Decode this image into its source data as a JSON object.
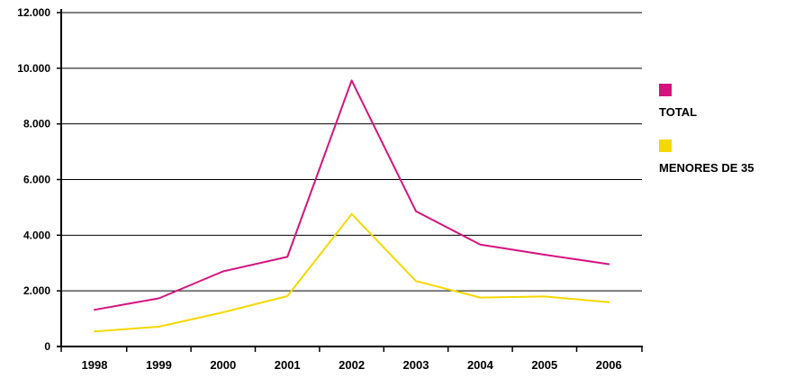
{
  "chart_data": {
    "type": "line",
    "categories": [
      "1998",
      "1999",
      "2000",
      "2001",
      "2002",
      "2003",
      "2004",
      "2005",
      "2006"
    ],
    "series": [
      {
        "name": "TOTAL",
        "color": "#d4137f",
        "values": [
          1320,
          1730,
          2700,
          3220,
          9560,
          4860,
          3660,
          3300,
          2960
        ]
      },
      {
        "name": "MENORES DE 35",
        "color": "#f5d800",
        "values": [
          540,
          710,
          1230,
          1810,
          4760,
          2350,
          1760,
          1800,
          1590
        ]
      }
    ],
    "y_ticks": [
      "0",
      "2.000",
      "4.000",
      "6.000",
      "8.000",
      "10.000",
      "12.000"
    ],
    "ylim": [
      0,
      12000
    ],
    "y_step": 2000,
    "grid": true,
    "legend_position": "right",
    "title": "",
    "xlabel": "",
    "ylabel": ""
  }
}
